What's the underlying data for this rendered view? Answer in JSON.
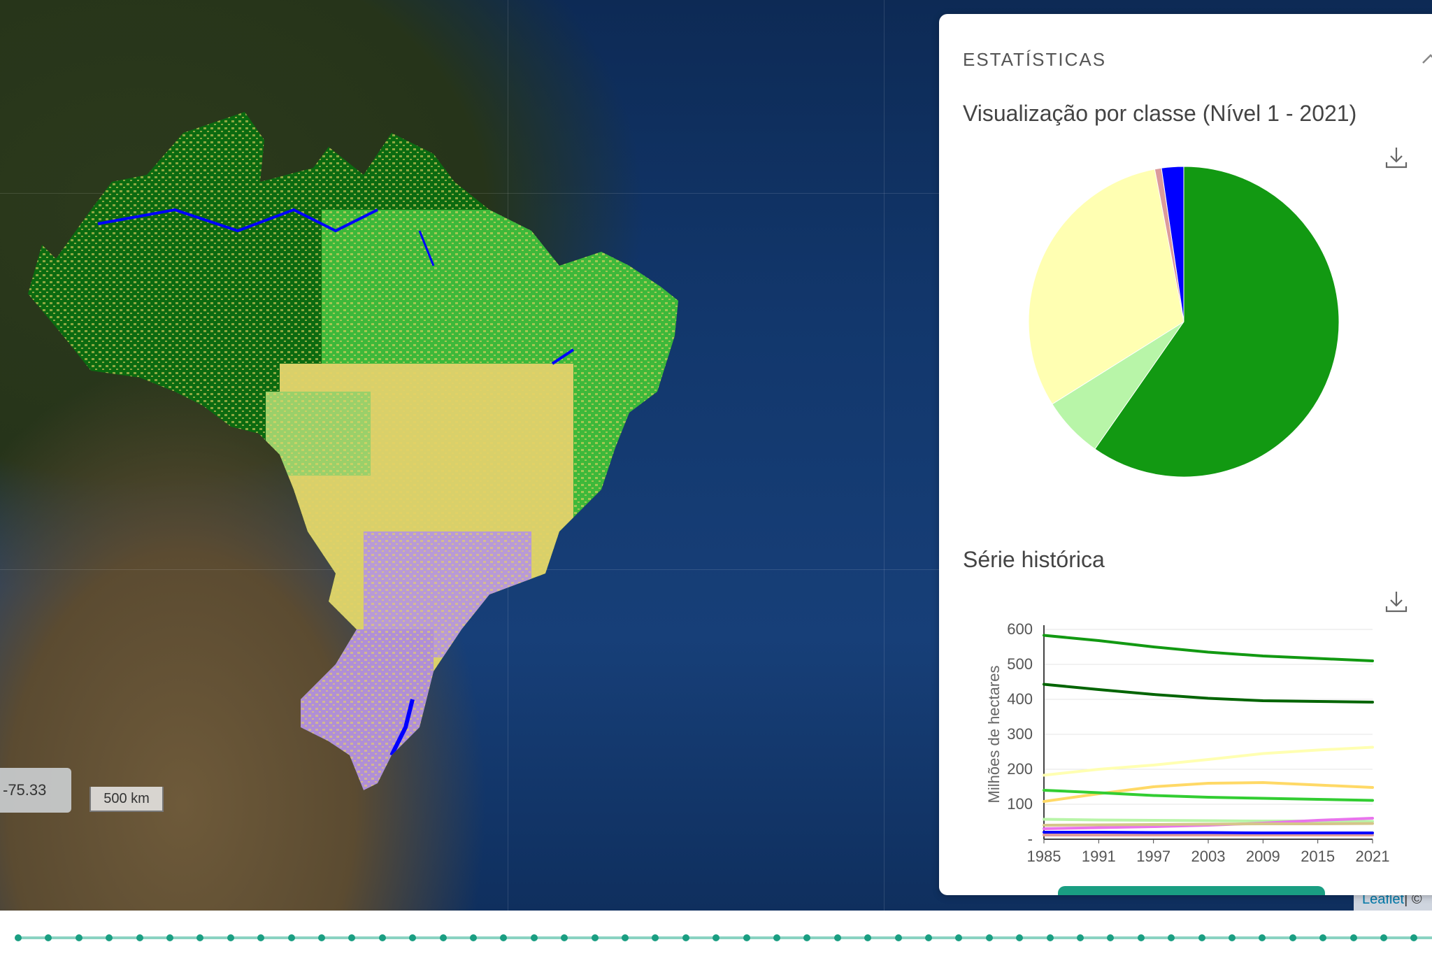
{
  "map": {
    "coordinate_readout": "-75.33",
    "scale_label": "500 km",
    "attribution": {
      "leaflet": "Leaflet",
      "separator": "| ©"
    }
  },
  "panel": {
    "header": "ESTATÍSTICAS",
    "pie_section_title": "Visualização por classe (Nível 1 - 2021)",
    "series_section_title": "Série histórica",
    "icons": {
      "collapse": "chevron-up-icon",
      "download": "download-icon"
    }
  },
  "chart_data": [
    {
      "type": "pie",
      "title": "Visualização por classe (Nível 1 - 2021)",
      "slices": [
        {
          "value": 59.7,
          "color": "#129912"
        },
        {
          "value": 6.4,
          "color": "#b8f5a8"
        },
        {
          "value": 30.9,
          "color": "#ffffb2"
        },
        {
          "value": 0.7,
          "color": "#dc9b9b"
        },
        {
          "value": 2.3,
          "color": "#0000ff"
        }
      ]
    },
    {
      "type": "line",
      "title": "Série histórica",
      "ylabel": "Milhões de hectares",
      "x": [
        1985,
        1991,
        1997,
        2003,
        2009,
        2015,
        2021
      ],
      "x_ticks": [
        "1985",
        "1991",
        "1997",
        "2003",
        "2009",
        "2015",
        "2021"
      ],
      "y_ticks": [
        "600",
        "500",
        "400",
        "300",
        "200",
        "100",
        "-"
      ],
      "ylim": [
        0,
        600
      ],
      "grid": true,
      "series": [
        {
          "color": "#129912",
          "values": [
            583,
            568,
            550,
            535,
            524,
            517,
            510
          ]
        },
        {
          "color": "#006400",
          "values": [
            443,
            428,
            414,
            403,
            396,
            394,
            392
          ]
        },
        {
          "color": "#ffffb2",
          "values": [
            183,
            200,
            212,
            228,
            245,
            255,
            263
          ]
        },
        {
          "color": "#ffd966",
          "values": [
            108,
            130,
            150,
            160,
            162,
            155,
            148
          ]
        },
        {
          "color": "#32cd32",
          "values": [
            140,
            133,
            125,
            120,
            117,
            114,
            111
          ]
        },
        {
          "color": "#b8f5a8",
          "values": [
            57,
            55,
            54,
            53,
            52,
            52,
            51
          ]
        },
        {
          "color": "#e974ed",
          "values": [
            30,
            33,
            36,
            40,
            46,
            54,
            60
          ]
        },
        {
          "color": "#d5c58a",
          "values": [
            40,
            41,
            42,
            43,
            44,
            44,
            45
          ]
        },
        {
          "color": "#dc9b9b",
          "values": [
            12,
            12,
            12,
            12,
            12,
            12,
            12
          ]
        },
        {
          "color": "#0000ff",
          "values": [
            20,
            20,
            19,
            19,
            18,
            18,
            18
          ]
        }
      ]
    }
  ],
  "timeline": {
    "dot_count": 47
  }
}
